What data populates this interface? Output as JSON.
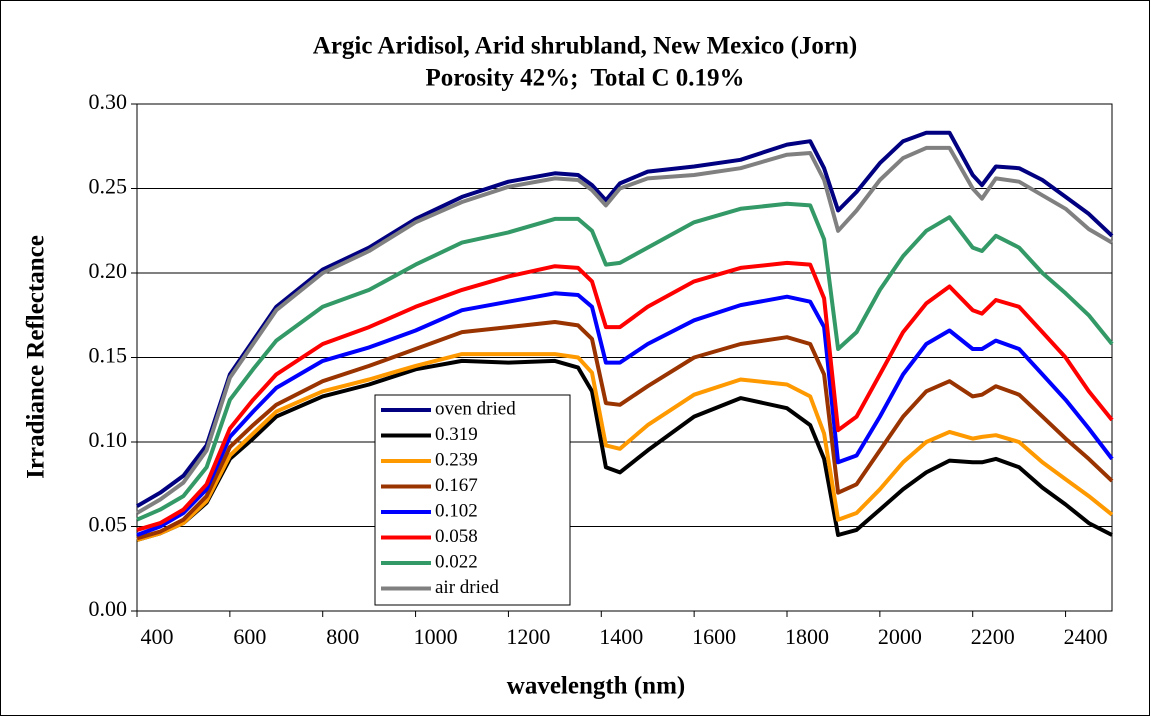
{
  "chart_data": {
    "type": "line",
    "title": [
      "Argic Aridisol, Arid shrubland, New Mexico (Jorn)",
      "Porosity 42%;  Total C 0.19%"
    ],
    "xlabel": "wavelength (nm)",
    "ylabel": "Irradiance Reflectance",
    "xlim": [
      400,
      2500
    ],
    "xticks": [
      400,
      600,
      800,
      1000,
      1200,
      1400,
      1600,
      1800,
      2000,
      2200,
      2400
    ],
    "ylim": [
      0,
      0.3
    ],
    "yticks": [
      {
        "value": 0,
        "label": "0.00"
      },
      {
        "value": 0.05,
        "label": "0.05"
      },
      {
        "value": 0.1,
        "label": "0.10"
      },
      {
        "value": 0.15,
        "label": "0.15"
      },
      {
        "value": 0.2,
        "label": "0.20"
      },
      {
        "value": 0.25,
        "label": "0.25"
      },
      {
        "value": 0.3,
        "label": "0.30"
      }
    ],
    "grid": true,
    "x": [
      400,
      450,
      500,
      550,
      600,
      650,
      700,
      800,
      900,
      1000,
      1100,
      1200,
      1300,
      1350,
      1380,
      1410,
      1440,
      1500,
      1600,
      1700,
      1800,
      1850,
      1880,
      1910,
      1950,
      2000,
      2050,
      2100,
      2150,
      2200,
      2220,
      2250,
      2300,
      2350,
      2400,
      2450,
      2500
    ],
    "series": [
      {
        "name": "oven dried",
        "color": "#000080",
        "values": [
          0.062,
          0.07,
          0.08,
          0.098,
          0.14,
          0.16,
          0.18,
          0.202,
          0.215,
          0.232,
          0.245,
          0.254,
          0.259,
          0.258,
          0.252,
          0.243,
          0.253,
          0.26,
          0.263,
          0.267,
          0.276,
          0.278,
          0.262,
          0.237,
          0.248,
          0.265,
          0.278,
          0.283,
          0.283,
          0.258,
          0.252,
          0.263,
          0.262,
          0.255,
          0.245,
          0.235,
          0.222
        ]
      },
      {
        "name": "0.319",
        "color": "#000000",
        "values": [
          0.042,
          0.046,
          0.052,
          0.064,
          0.09,
          0.102,
          0.115,
          0.127,
          0.134,
          0.143,
          0.148,
          0.147,
          0.148,
          0.144,
          0.13,
          0.085,
          0.082,
          0.095,
          0.115,
          0.126,
          0.12,
          0.11,
          0.09,
          0.045,
          0.048,
          0.06,
          0.072,
          0.082,
          0.089,
          0.088,
          0.088,
          0.09,
          0.085,
          0.073,
          0.063,
          0.052,
          0.045
        ]
      },
      {
        "name": "0.239",
        "color": "#ff9900",
        "values": [
          0.042,
          0.046,
          0.052,
          0.065,
          0.092,
          0.105,
          0.118,
          0.13,
          0.137,
          0.145,
          0.152,
          0.152,
          0.152,
          0.15,
          0.141,
          0.098,
          0.096,
          0.11,
          0.128,
          0.137,
          0.134,
          0.127,
          0.105,
          0.054,
          0.058,
          0.072,
          0.088,
          0.1,
          0.106,
          0.102,
          0.103,
          0.104,
          0.1,
          0.088,
          0.078,
          0.068,
          0.057
        ]
      },
      {
        "name": "0.167",
        "color": "#993300",
        "values": [
          0.043,
          0.047,
          0.054,
          0.068,
          0.097,
          0.11,
          0.122,
          0.136,
          0.145,
          0.155,
          0.165,
          0.168,
          0.171,
          0.169,
          0.161,
          0.123,
          0.122,
          0.133,
          0.15,
          0.158,
          0.162,
          0.158,
          0.14,
          0.07,
          0.075,
          0.095,
          0.115,
          0.13,
          0.136,
          0.127,
          0.128,
          0.133,
          0.128,
          0.115,
          0.102,
          0.09,
          0.077
        ]
      },
      {
        "name": "0.102",
        "color": "#0000ff",
        "values": [
          0.045,
          0.05,
          0.058,
          0.072,
          0.103,
          0.118,
          0.132,
          0.148,
          0.156,
          0.166,
          0.178,
          0.183,
          0.188,
          0.187,
          0.18,
          0.147,
          0.147,
          0.158,
          0.172,
          0.181,
          0.186,
          0.183,
          0.168,
          0.088,
          0.092,
          0.115,
          0.14,
          0.158,
          0.166,
          0.155,
          0.155,
          0.16,
          0.155,
          0.14,
          0.125,
          0.108,
          0.09
        ]
      },
      {
        "name": "0.058",
        "color": "#ff0000",
        "values": [
          0.048,
          0.052,
          0.06,
          0.075,
          0.108,
          0.125,
          0.14,
          0.158,
          0.168,
          0.18,
          0.19,
          0.198,
          0.204,
          0.203,
          0.195,
          0.168,
          0.168,
          0.18,
          0.195,
          0.203,
          0.206,
          0.205,
          0.185,
          0.107,
          0.115,
          0.14,
          0.165,
          0.182,
          0.192,
          0.178,
          0.176,
          0.184,
          0.18,
          0.165,
          0.15,
          0.13,
          0.113
        ]
      },
      {
        "name": "0.022",
        "color": "#339966",
        "values": [
          0.054,
          0.06,
          0.068,
          0.085,
          0.125,
          0.143,
          0.16,
          0.18,
          0.19,
          0.205,
          0.218,
          0.224,
          0.232,
          0.232,
          0.225,
          0.205,
          0.206,
          0.215,
          0.23,
          0.238,
          0.241,
          0.24,
          0.22,
          0.155,
          0.165,
          0.19,
          0.21,
          0.225,
          0.233,
          0.215,
          0.213,
          0.222,
          0.215,
          0.2,
          0.188,
          0.175,
          0.158
        ]
      },
      {
        "name": "air dried",
        "color": "#808080",
        "values": [
          0.058,
          0.066,
          0.076,
          0.095,
          0.138,
          0.158,
          0.178,
          0.2,
          0.213,
          0.23,
          0.242,
          0.251,
          0.256,
          0.255,
          0.249,
          0.24,
          0.25,
          0.256,
          0.258,
          0.262,
          0.27,
          0.271,
          0.255,
          0.225,
          0.237,
          0.255,
          0.268,
          0.274,
          0.274,
          0.25,
          0.244,
          0.256,
          0.254,
          0.246,
          0.238,
          0.226,
          0.218
        ]
      }
    ]
  }
}
